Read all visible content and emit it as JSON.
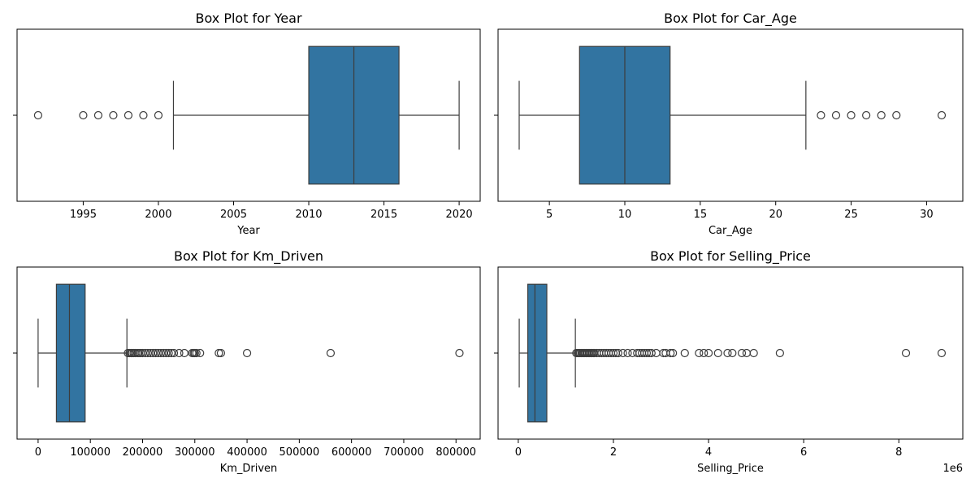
{
  "chart_data": [
    {
      "type": "box",
      "title": "Box Plot for Year",
      "xlabel": "Year",
      "ylabel": "",
      "xlim": [
        1990.6,
        2021.4
      ],
      "xticks": [
        1995,
        2000,
        2005,
        2010,
        2015,
        2020
      ],
      "xtick_labels": [
        "1995",
        "2000",
        "2005",
        "2010",
        "2015",
        "2020"
      ],
      "offset_label": "",
      "box": {
        "whisker_low": 2001,
        "q1": 2010,
        "median": 2013,
        "q3": 2016,
        "whisker_high": 2020
      },
      "outliers": [
        1992,
        1995,
        1996,
        1997,
        1998,
        1999,
        2000
      ],
      "grid": false,
      "color": "#3274a1"
    },
    {
      "type": "box",
      "title": "Box Plot for Car_Age",
      "xlabel": "Car_Age",
      "ylabel": "",
      "xlim": [
        1.6,
        32.4
      ],
      "xticks": [
        5,
        10,
        15,
        20,
        25,
        30
      ],
      "xtick_labels": [
        "5",
        "10",
        "15",
        "20",
        "25",
        "30"
      ],
      "offset_label": "",
      "box": {
        "whisker_low": 3,
        "q1": 7,
        "median": 10,
        "q3": 13,
        "whisker_high": 22
      },
      "outliers": [
        23,
        24,
        25,
        26,
        27,
        28,
        31
      ],
      "grid": false,
      "color": "#3274a1"
    },
    {
      "type": "box",
      "title": "Box Plot for Km_Driven",
      "xlabel": "Km_Driven",
      "ylabel": "",
      "xlim": [
        -40300,
        846300
      ],
      "xticks": [
        0,
        100000,
        200000,
        300000,
        400000,
        500000,
        600000,
        700000,
        800000
      ],
      "xtick_labels": [
        "0",
        "100000",
        "200000",
        "300000",
        "400000",
        "500000",
        "600000",
        "700000",
        "800000"
      ],
      "offset_label": "",
      "box": {
        "whisker_low": 1,
        "q1": 35000,
        "median": 60000,
        "q3": 90000,
        "whisker_high": 170000
      },
      "outliers": [
        172000,
        175000,
        178000,
        180000,
        183000,
        186000,
        190000,
        193000,
        196000,
        200000,
        205000,
        210000,
        215000,
        220000,
        225000,
        230000,
        235000,
        240000,
        245000,
        250000,
        255000,
        260000,
        270000,
        280000,
        295000,
        298000,
        300000,
        303000,
        310000,
        346000,
        350000,
        400000,
        560000,
        806599
      ],
      "grid": false,
      "color": "#3274a1"
    },
    {
      "type": "box",
      "title": "Box Plot for Selling_Price",
      "xlabel": "Selling_Price",
      "ylabel": "",
      "xlim": [
        -425000,
        9345000
      ],
      "xticks": [
        0,
        2,
        4,
        6,
        8
      ],
      "xtick_values": [
        0,
        2000000,
        4000000,
        6000000,
        8000000
      ],
      "xtick_labels": [
        "0",
        "2",
        "4",
        "6",
        "8"
      ],
      "offset_label": "1e6",
      "box": {
        "whisker_low": 20000,
        "q1": 200000,
        "median": 350000,
        "q3": 600000,
        "whisker_high": 1200000
      },
      "outliers": [
        1220000,
        1250000,
        1280000,
        1300000,
        1330000,
        1350000,
        1380000,
        1400000,
        1430000,
        1450000,
        1480000,
        1500000,
        1530000,
        1550000,
        1580000,
        1600000,
        1650000,
        1700000,
        1750000,
        1800000,
        1850000,
        1900000,
        1950000,
        2000000,
        2050000,
        2100000,
        2200000,
        2300000,
        2400000,
        2500000,
        2550000,
        2600000,
        2650000,
        2700000,
        2750000,
        2800000,
        2900000,
        3050000,
        3100000,
        3200000,
        3250000,
        3500000,
        3800000,
        3900000,
        4000000,
        4200000,
        4400000,
        4500000,
        4700000,
        4800000,
        4950000,
        5500000,
        8150000,
        8900000
      ],
      "grid": false,
      "color": "#3274a1"
    }
  ]
}
